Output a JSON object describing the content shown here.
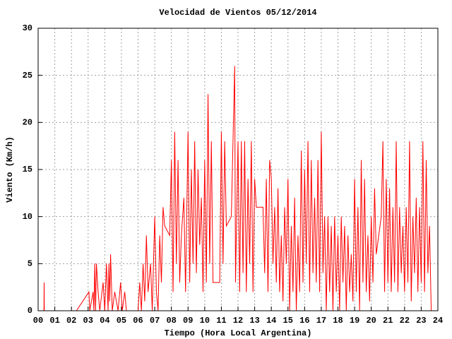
{
  "chart_data": {
    "type": "line",
    "title": "Velocidad de Vientos 05/12/2014",
    "x_label": "Tiempo (Hora Local Argentina)",
    "y_label": "Viento (Km/h)",
    "xlim": [
      0,
      24
    ],
    "ylim": [
      0,
      30
    ],
    "xticks": [
      {
        "value": 0,
        "label": "00"
      },
      {
        "value": 1,
        "label": "01"
      },
      {
        "value": 2,
        "label": "02"
      },
      {
        "value": 3,
        "label": "03"
      },
      {
        "value": 4,
        "label": "04"
      },
      {
        "value": 5,
        "label": "05"
      },
      {
        "value": 6,
        "label": "06"
      },
      {
        "value": 7,
        "label": "07"
      },
      {
        "value": 8,
        "label": "08"
      },
      {
        "value": 9,
        "label": "09"
      },
      {
        "value": 10,
        "label": "10"
      },
      {
        "value": 11,
        "label": "11"
      },
      {
        "value": 12,
        "label": "12"
      },
      {
        "value": 13,
        "label": "13"
      },
      {
        "value": 14,
        "label": "14"
      },
      {
        "value": 15,
        "label": "15"
      },
      {
        "value": 16,
        "label": "16"
      },
      {
        "value": 17,
        "label": "17"
      },
      {
        "value": 18,
        "label": "18"
      },
      {
        "value": 19,
        "label": "19"
      },
      {
        "value": 20,
        "label": "20"
      },
      {
        "value": 21,
        "label": "21"
      },
      {
        "value": 22,
        "label": "22"
      },
      {
        "value": 23,
        "label": "23"
      },
      {
        "value": 24,
        "label": "24"
      }
    ],
    "yticks": [
      0,
      5,
      10,
      15,
      20,
      25,
      30
    ],
    "grid": true,
    "color": "#ff0000",
    "x": [
      0,
      0.35,
      0.36,
      0.37,
      1.0,
      2.0,
      2.3,
      3.05,
      3.1,
      3.3,
      3.35,
      3.4,
      3.45,
      3.5,
      3.6,
      3.7,
      3.9,
      4.0,
      4.1,
      4.2,
      4.25,
      4.3,
      4.35,
      4.45,
      4.6,
      4.8,
      4.95,
      5.05,
      5.2,
      5.3,
      5.5,
      6.0,
      6.1,
      6.2,
      6.3,
      6.4,
      6.5,
      6.6,
      6.75,
      6.85,
      7.0,
      7.1,
      7.2,
      7.3,
      7.4,
      7.5,
      7.6,
      7.9,
      8.0,
      8.1,
      8.2,
      8.3,
      8.4,
      8.5,
      8.6,
      8.75,
      8.85,
      9.0,
      9.1,
      9.2,
      9.3,
      9.4,
      9.5,
      9.6,
      9.7,
      9.8,
      9.9,
      10.0,
      10.1,
      10.2,
      10.3,
      10.4,
      10.5,
      10.6,
      10.9,
      11.0,
      11.1,
      11.2,
      11.3,
      11.6,
      11.8,
      11.85,
      12.0,
      12.1,
      12.2,
      12.3,
      12.4,
      12.5,
      12.6,
      12.7,
      12.8,
      12.9,
      13.0,
      13.1,
      13.5,
      13.6,
      13.7,
      13.8,
      13.9,
      14.0,
      14.1,
      14.2,
      14.3,
      14.4,
      14.5,
      14.6,
      14.7,
      14.8,
      14.9,
      15.0,
      15.1,
      15.2,
      15.3,
      15.4,
      15.5,
      15.6,
      15.7,
      15.8,
      15.9,
      16.0,
      16.1,
      16.2,
      16.3,
      16.4,
      16.5,
      16.6,
      16.7,
      16.8,
      16.9,
      17.0,
      17.1,
      17.2,
      17.3,
      17.4,
      17.5,
      17.6,
      17.7,
      17.8,
      17.9,
      18.0,
      18.1,
      18.2,
      18.3,
      18.4,
      18.5,
      18.6,
      18.7,
      18.8,
      18.9,
      19.0,
      19.1,
      19.2,
      19.3,
      19.4,
      19.5,
      19.6,
      19.7,
      19.8,
      19.9,
      20.0,
      20.1,
      20.2,
      20.3,
      20.6,
      20.7,
      20.8,
      20.9,
      21.0,
      21.1,
      21.2,
      21.3,
      21.4,
      21.5,
      21.6,
      21.7,
      21.8,
      21.9,
      22.0,
      22.1,
      22.2,
      22.3,
      22.4,
      22.5,
      22.6,
      22.7,
      22.8,
      22.9,
      23.0,
      23.1,
      23.2,
      23.3,
      23.4,
      23.5,
      23.6
    ],
    "values": [
      0,
      0,
      3,
      0,
      0,
      0,
      0,
      2,
      0,
      2,
      0,
      5,
      0,
      5,
      2,
      0,
      3,
      0,
      5,
      0,
      5,
      1,
      6,
      0,
      2,
      0,
      3,
      0,
      2,
      0,
      0,
      0,
      3,
      0,
      5,
      1,
      8,
      2,
      5,
      0,
      10,
      2,
      0,
      8,
      3,
      11,
      9,
      8,
      16,
      2,
      19,
      5,
      16,
      3,
      8,
      12,
      2,
      19,
      3,
      15,
      5,
      18,
      4,
      15,
      7,
      12,
      2,
      16,
      3,
      23,
      5,
      18,
      3,
      3,
      3,
      19,
      5,
      18,
      9,
      10,
      26,
      3,
      18,
      2,
      18,
      4,
      18,
      2,
      14,
      5,
      18,
      2,
      14,
      11,
      11,
      4,
      14,
      2,
      16,
      14,
      5,
      11,
      3,
      13,
      2,
      8,
      1,
      11,
      5,
      14,
      0,
      9,
      2,
      12,
      0,
      8,
      2,
      17,
      3,
      15,
      5,
      18,
      2,
      16,
      4,
      12,
      3,
      16,
      2,
      19,
      4,
      10,
      0,
      10,
      2,
      9,
      0,
      10,
      2,
      8,
      0,
      10,
      3,
      9,
      0,
      8,
      2,
      6,
      1,
      14,
      2,
      11,
      0,
      16,
      3,
      14,
      2,
      8,
      1,
      10,
      3,
      13,
      6,
      10,
      18,
      2,
      14,
      3,
      13,
      2,
      11,
      3,
      18,
      2,
      11,
      4,
      9,
      2,
      11,
      3,
      18,
      1,
      10,
      4,
      12,
      2,
      11,
      3,
      18,
      2,
      16,
      4,
      9,
      0
    ]
  }
}
